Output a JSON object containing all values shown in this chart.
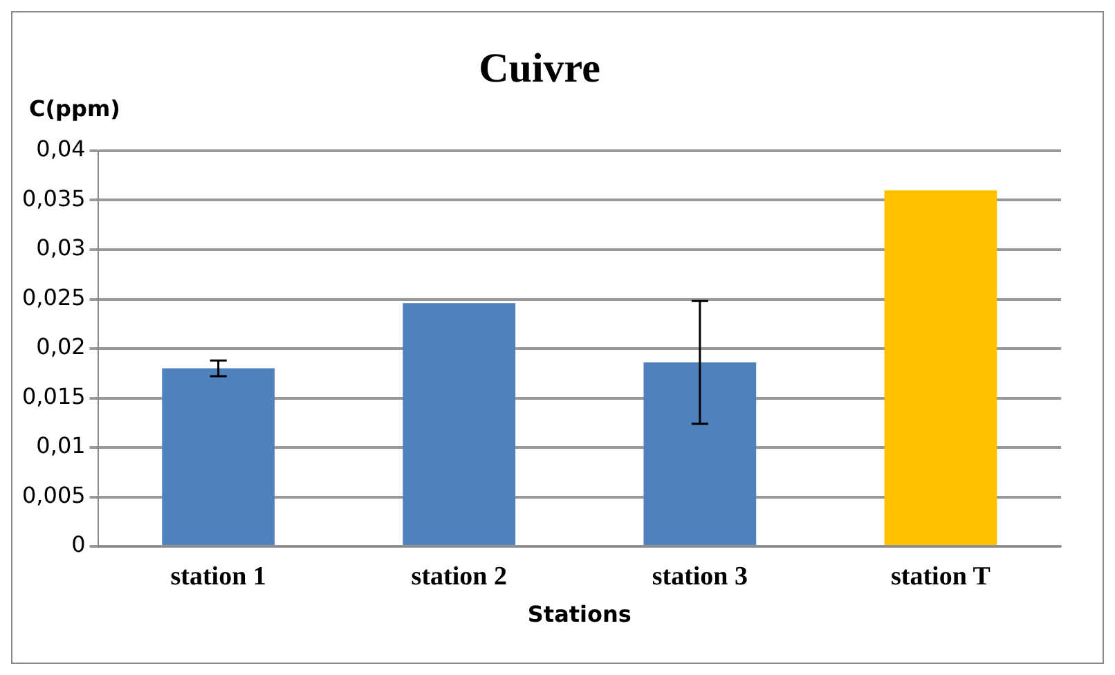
{
  "chart_data": {
    "type": "bar",
    "title": "Cuivre",
    "xlabel": "Stations",
    "ylabel": "C(ppm)",
    "categories": [
      "station 1",
      "station 2",
      "station 3",
      "station T"
    ],
    "values": [
      0.018,
      0.0246,
      0.0186,
      0.036
    ],
    "colors": [
      "#4f81bd",
      "#4f81bd",
      "#4f81bd",
      "#ffc000"
    ],
    "errors": [
      0.0008,
      null,
      0.0062,
      null
    ],
    "ylim": [
      0,
      0.04
    ],
    "yticks": [
      {
        "value": 0,
        "label": "0"
      },
      {
        "value": 0.005,
        "label": "0,005"
      },
      {
        "value": 0.01,
        "label": "0,01"
      },
      {
        "value": 0.015,
        "label": "0,015"
      },
      {
        "value": 0.02,
        "label": "0,02"
      },
      {
        "value": 0.025,
        "label": "0,025"
      },
      {
        "value": 0.03,
        "label": "0,03"
      },
      {
        "value": 0.035,
        "label": "0,035"
      },
      {
        "value": 0.04,
        "label": "0,04"
      }
    ],
    "grid": "y",
    "legend": false
  }
}
